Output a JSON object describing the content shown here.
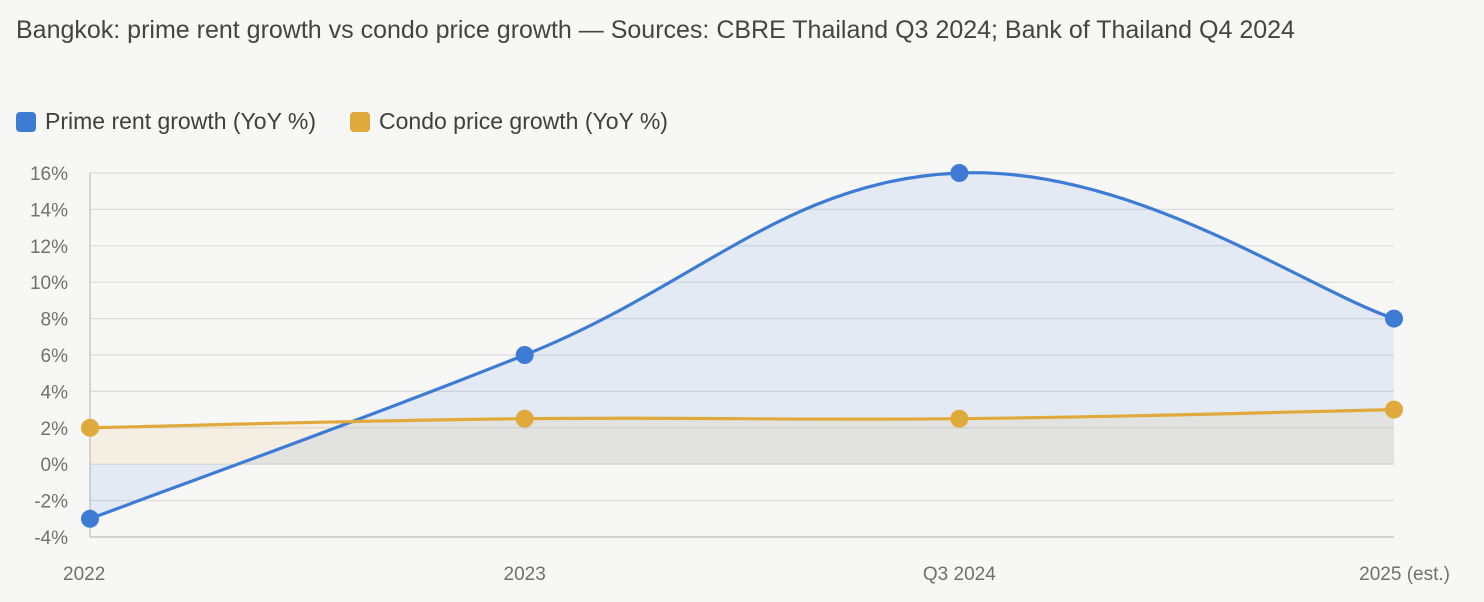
{
  "title": "Bangkok: prime rent growth vs condo price growth — Sources: CBRE Thailand Q3 2024; Bank of Thailand Q4 2024",
  "colors": {
    "rent": "#3d7bd4",
    "condo": "#e0a93b",
    "grid": "#dcdcdc",
    "axis": "#c8c8c8",
    "background": "#f7f7f6"
  },
  "chart_data": {
    "type": "line",
    "categories": [
      "2022",
      "2023",
      "Q3 2024",
      "2025 (est.)"
    ],
    "series": [
      {
        "name": "Prime rent growth (YoY %)",
        "values": [
          -3,
          6,
          16,
          8
        ],
        "color": "#3d7bd4"
      },
      {
        "name": "Condo price growth (YoY %)",
        "values": [
          2,
          2.5,
          2.5,
          3
        ],
        "color": "#e0a93b"
      }
    ],
    "ylim": [
      -4,
      16
    ],
    "yticks": [
      -4,
      -2,
      0,
      2,
      4,
      6,
      8,
      10,
      12,
      14,
      16
    ],
    "y_tick_format": "percent",
    "area_fill": true,
    "smooth": true,
    "grid": true,
    "legend_position": "top-left"
  }
}
